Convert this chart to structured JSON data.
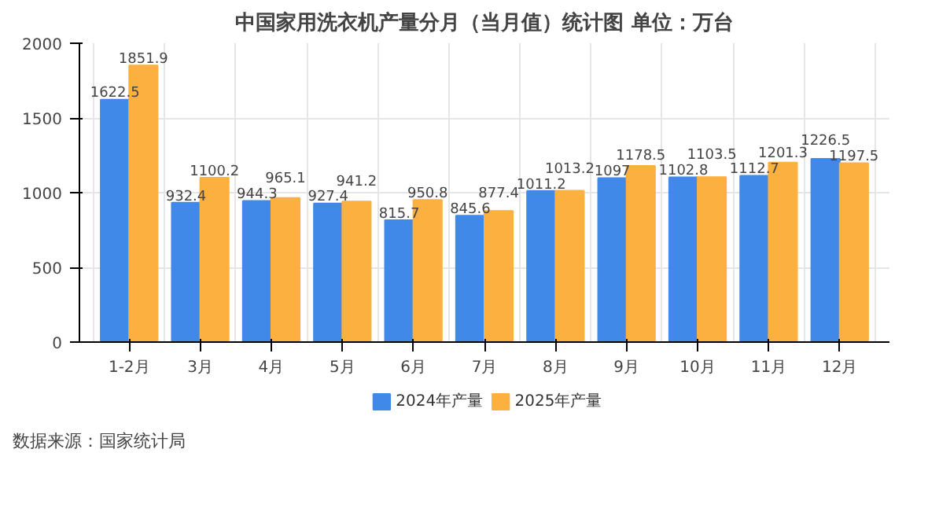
{
  "chart_data": {
    "type": "bar",
    "title": "中国家用洗衣机产量分月（当月值）统计图 单位：万台",
    "categories": [
      "1-2月",
      "3月",
      "4月",
      "5月",
      "6月",
      "7月",
      "8月",
      "9月",
      "10月",
      "11月",
      "12月"
    ],
    "series": [
      {
        "name": "2024年产量",
        "color": "#4189e8",
        "values": [
          1622.5,
          932.4,
          944.3,
          927.4,
          815.7,
          845.6,
          1011.2,
          1097,
          1102.8,
          1112.7,
          1226.5
        ]
      },
      {
        "name": "2025年产量",
        "color": "#fbb040",
        "values": [
          1851.9,
          1100.2,
          965.1,
          941.2,
          950.8,
          877.4,
          1013.2,
          1178.5,
          1103.5,
          1201.3,
          1197.5
        ]
      }
    ],
    "ylim": [
      0,
      2000
    ],
    "yticks": [
      0,
      500,
      1000,
      1500,
      2000
    ],
    "grid": true,
    "legend": "bottom",
    "data_labels": true,
    "annotations": [
      "数据来源：国家统计局"
    ]
  }
}
